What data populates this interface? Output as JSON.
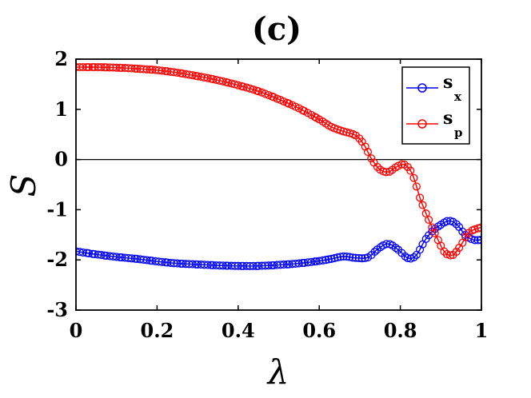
{
  "chart_data": {
    "type": "line",
    "title": "(c)",
    "xlabel": "λ",
    "ylabel": "S",
    "xlim": [
      0,
      1
    ],
    "ylim": [
      -3,
      2
    ],
    "x_ticks": [
      "0",
      "0.2",
      "0.4",
      "0.6",
      "0.8",
      "1"
    ],
    "y_ticks": [
      "2",
      "1",
      "0",
      "-1",
      "-2",
      "-3"
    ],
    "grid": false,
    "reference_line_y": 0,
    "legend_position": "top-right",
    "series": [
      {
        "name": "s",
        "subscript": "x",
        "color": "#0000ff",
        "marker": "circle",
        "x": [
          0,
          0.05,
          0.1,
          0.15,
          0.2,
          0.25,
          0.3,
          0.35,
          0.4,
          0.45,
          0.5,
          0.55,
          0.6,
          0.63,
          0.66,
          0.69,
          0.72,
          0.745,
          0.77,
          0.795,
          0.82,
          0.84,
          0.86,
          0.88,
          0.9,
          0.92,
          0.94,
          0.96,
          0.98,
          1.0
        ],
        "values": [
          -1.83,
          -1.89,
          -1.94,
          -1.98,
          -2.03,
          -2.07,
          -2.09,
          -2.11,
          -2.12,
          -2.12,
          -2.1,
          -2.07,
          -2.02,
          -1.98,
          -1.93,
          -1.96,
          -1.95,
          -1.78,
          -1.68,
          -1.8,
          -1.97,
          -1.9,
          -1.62,
          -1.42,
          -1.3,
          -1.22,
          -1.3,
          -1.5,
          -1.6,
          -1.6
        ]
      },
      {
        "name": "s",
        "subscript": "p",
        "color": "#ff0000",
        "marker": "circle",
        "x": [
          0,
          0.05,
          0.1,
          0.15,
          0.2,
          0.25,
          0.3,
          0.35,
          0.4,
          0.45,
          0.5,
          0.55,
          0.6,
          0.63,
          0.66,
          0.69,
          0.71,
          0.73,
          0.75,
          0.77,
          0.79,
          0.81,
          0.83,
          0.85,
          0.87,
          0.89,
          0.91,
          0.93,
          0.95,
          0.97,
          1.0
        ],
        "values": [
          1.84,
          1.84,
          1.83,
          1.81,
          1.78,
          1.73,
          1.66,
          1.58,
          1.48,
          1.36,
          1.2,
          1.02,
          0.8,
          0.65,
          0.56,
          0.48,
          0.3,
          0.0,
          -0.2,
          -0.25,
          -0.15,
          -0.1,
          -0.3,
          -0.8,
          -1.2,
          -1.55,
          -1.85,
          -1.9,
          -1.7,
          -1.45,
          -1.35
        ]
      }
    ]
  }
}
